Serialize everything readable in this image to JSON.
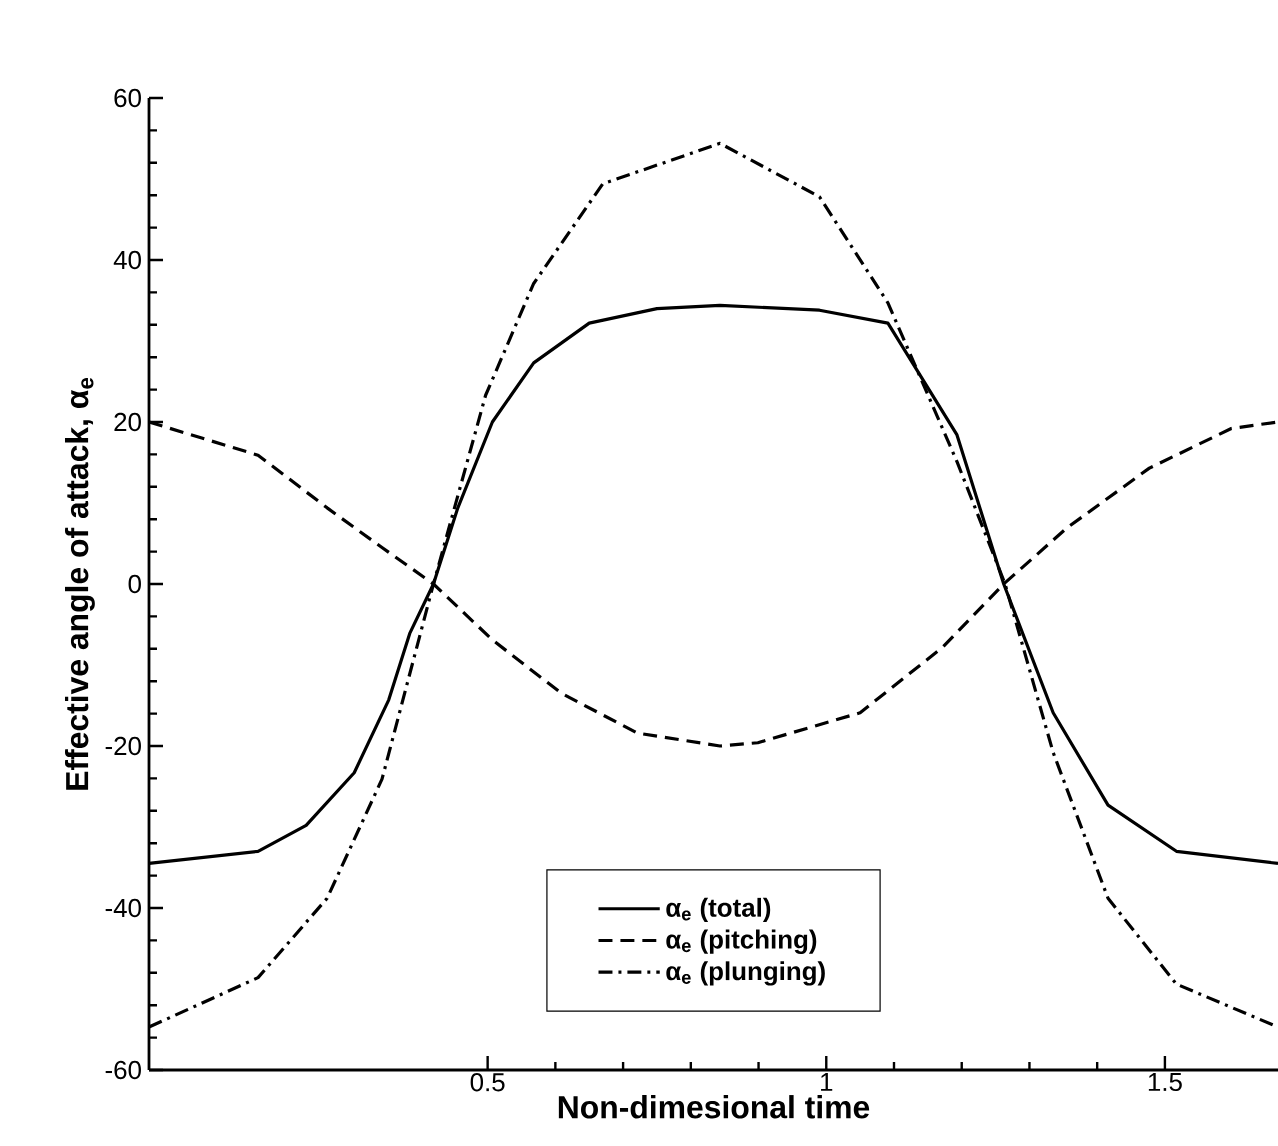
{
  "chart_data": {
    "type": "line",
    "xlabel": "Non-dimesional time",
    "ylabel": "Effective angle of attack, α$_{e}$",
    "xlim": [
      0,
      1.667
    ],
    "ylim": [
      -60,
      60
    ],
    "xticks": [
      0.5,
      1,
      1.5
    ],
    "yticks": [
      -60,
      -40,
      -20,
      0,
      20,
      40,
      60
    ],
    "legend": "bottom",
    "series": [
      {
        "name": "α$_{e}$ (total)",
        "color": "#000000",
        "line_style": "solid",
        "x": [
          0,
          0.161,
          0.232,
          0.303,
          0.354,
          0.385,
          0.42,
          0.456,
          0.507,
          0.568,
          0.65,
          0.75,
          0.843,
          0.99,
          1.091,
          1.193,
          1.262,
          1.335,
          1.416,
          1.517,
          1.667
        ],
        "values": [
          -34.5,
          -33,
          -29.8,
          -23.3,
          -14.3,
          -6.1,
          0,
          9.4,
          20,
          27.3,
          32.2,
          34,
          34.4,
          33.8,
          32.2,
          18.4,
          0,
          -15.9,
          -27.3,
          -33,
          -34.5
        ]
      },
      {
        "name": "α$_{e}$ (pitching)",
        "color": "#000000",
        "line_style": "dashed",
        "x": [
          0,
          0.161,
          0.263,
          0.344,
          0.42,
          0.507,
          0.609,
          0.721,
          0.843,
          0.899,
          1.05,
          1.172,
          1.262,
          1.355,
          1.477,
          1.598,
          1.667
        ],
        "values": [
          20,
          15.9,
          9.4,
          4.5,
          0,
          -6.9,
          -13.5,
          -18.4,
          -20,
          -19.6,
          -15.9,
          -7.8,
          0,
          6.9,
          14.3,
          19.2,
          20
        ]
      },
      {
        "name": "α$_{e}$ (plunging)",
        "color": "#000000",
        "line_style": "dashdot",
        "x": [
          0,
          0.161,
          0.263,
          0.344,
          0.42,
          0.497,
          0.568,
          0.67,
          0.843,
          0.99,
          1.091,
          1.193,
          1.264,
          1.335,
          1.416,
          1.517,
          1.667
        ],
        "values": [
          -54.7,
          -48.6,
          -38.8,
          -24.1,
          0,
          23.3,
          37.1,
          49.4,
          54.4,
          47.8,
          34.7,
          15.1,
          0,
          -20.8,
          -38.8,
          -49.4,
          -54.7
        ]
      }
    ]
  }
}
